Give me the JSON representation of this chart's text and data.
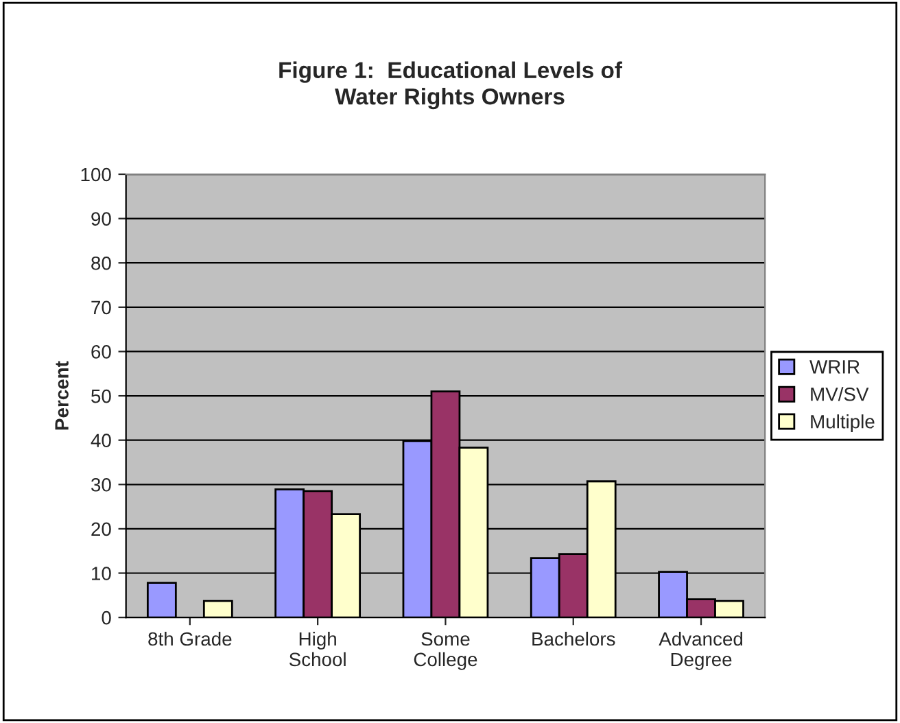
{
  "chart_data": {
    "type": "bar",
    "title": "Figure 1:  Educational Levels of\nWater Rights Owners",
    "ylabel": "Percent",
    "categories": [
      "8th Grade",
      "High\nSchool",
      "Some\nCollege",
      "Bachelors",
      "Advanced\nDegree"
    ],
    "series": [
      {
        "name": "WRIR",
        "color": "#9999ff",
        "values": [
          7.8,
          28.9,
          39.8,
          13.4,
          10.3
        ]
      },
      {
        "name": "MV/SV",
        "color": "#993366",
        "values": [
          null,
          28.5,
          51.0,
          14.3,
          4.1
        ]
      },
      {
        "name": "Multiple",
        "color": "#ffffcc",
        "values": [
          3.7,
          23.3,
          38.3,
          30.7,
          3.7
        ]
      }
    ],
    "ylim": [
      0,
      100
    ],
    "yticks": [
      0,
      10,
      20,
      30,
      40,
      50,
      60,
      70,
      80,
      90,
      100
    ],
    "grid": "y",
    "legend": "right"
  }
}
